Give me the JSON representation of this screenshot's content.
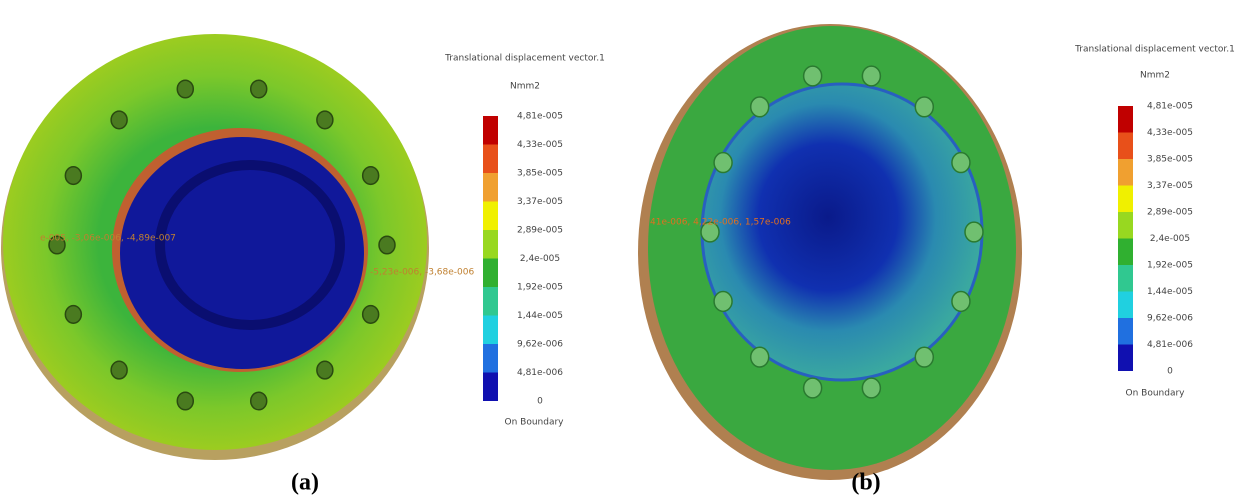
{
  "panels": [
    {
      "caption": "(a)",
      "legend": {
        "title": "Translational displacement vector.1",
        "unit": "Nmm2",
        "labels": [
          "4,81e-005",
          "4,33e-005",
          "3,85e-005",
          "3,37e-005",
          "2,89e-005",
          "2,4e-005",
          "1,92e-005",
          "1,44e-005",
          "9,62e-006",
          "4,81e-006",
          "0"
        ],
        "footer": "On Boundary"
      },
      "annotations": [
        "e-005, -3,06e-006, -4,89e-007",
        "-5,23e-006, -3,68e-006"
      ]
    },
    {
      "caption": "(b)",
      "legend": {
        "title": "Translational displacement vector.1",
        "unit": "Nmm2",
        "labels": [
          "4,81e-005",
          "4,33e-005",
          "3,85e-005",
          "3,37e-005",
          "2,89e-005",
          "2,4e-005",
          "1,92e-005",
          "1,44e-005",
          "9,62e-006",
          "4,81e-006",
          "0"
        ],
        "footer": "On Boundary"
      },
      "annotations": [
        "41e-006, 4,22e-006, 1,57e-006"
      ]
    }
  ]
}
